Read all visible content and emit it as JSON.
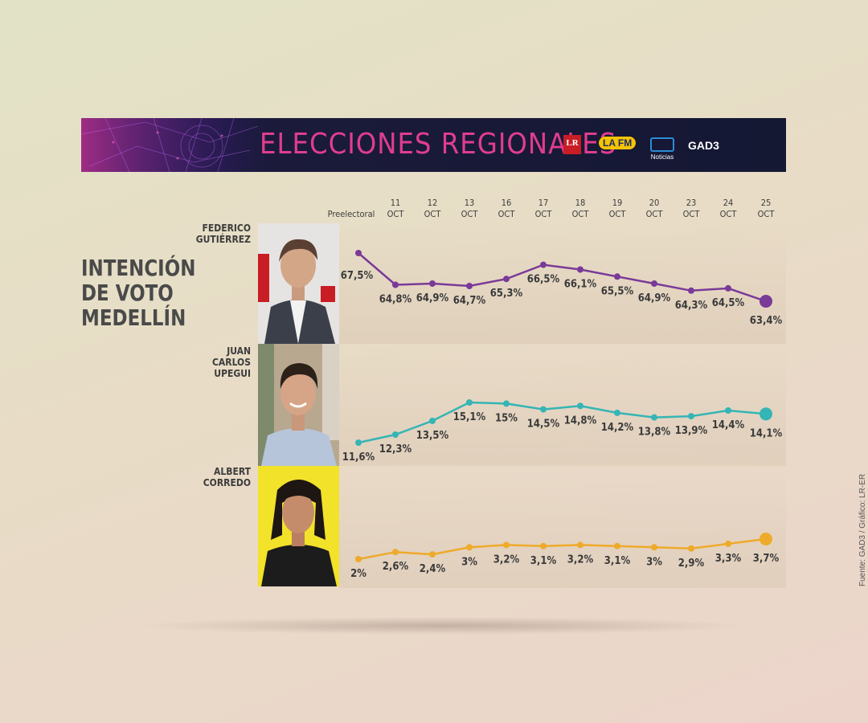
{
  "header": {
    "title": "ELECCIONES REGIONALES",
    "logos": [
      {
        "name": "La Republica",
        "text": "LR"
      },
      {
        "name": "La FM",
        "text": "LA FM"
      },
      {
        "name": "RCN Noticias",
        "text": "Noticias"
      },
      {
        "name": "GAD3",
        "text": "GAD3"
      }
    ]
  },
  "headline": [
    "INTENCIÓN",
    "DE VOTO",
    "MEDELLÍN"
  ],
  "source": "Fuente: GAD3 / Gráfico: LR-ER",
  "chart_data": {
    "type": "line",
    "x_ticks": [
      {
        "line1": "",
        "line2": "Preelectoral"
      },
      {
        "line1": "11",
        "line2": "OCT"
      },
      {
        "line1": "12",
        "line2": "OCT"
      },
      {
        "line1": "13",
        "line2": "OCT"
      },
      {
        "line1": "16",
        "line2": "OCT"
      },
      {
        "line1": "17",
        "line2": "OCT"
      },
      {
        "line1": "18",
        "line2": "OCT"
      },
      {
        "line1": "19",
        "line2": "OCT"
      },
      {
        "line1": "20",
        "line2": "OCT"
      },
      {
        "line1": "23",
        "line2": "OCT"
      },
      {
        "line1": "24",
        "line2": "OCT"
      },
      {
        "line1": "25",
        "line2": "OCT"
      }
    ],
    "series": [
      {
        "name": "FEDERICO GUTIÉRREZ",
        "name_lines": [
          "FEDERICO",
          "GUTIÉRREZ"
        ],
        "color": "#7a3a98",
        "values": [
          67.5,
          64.8,
          64.9,
          64.7,
          65.3,
          66.5,
          66.1,
          65.5,
          64.9,
          64.3,
          64.5,
          63.4
        ],
        "labels": [
          "67,5%",
          "64,8%",
          "64,9%",
          "64,7%",
          "65,3%",
          "66,5%",
          "66,1%",
          "65,5%",
          "64,9%",
          "64,3%",
          "64,5%",
          "63,4%"
        ],
        "photo": {
          "background": "#e8e8e8",
          "shirt": "#3b3f4a",
          "accent": "#c81d25"
        }
      },
      {
        "name": "JUAN CARLOS UPEGUI",
        "name_lines": [
          "JUAN",
          "CARLOS",
          "UPEGUI"
        ],
        "color": "#35b5b5",
        "values": [
          11.6,
          12.3,
          13.5,
          15.1,
          15,
          14.5,
          14.8,
          14.2,
          13.8,
          13.9,
          14.4,
          14.1
        ],
        "labels": [
          "11,6%",
          "12,3%",
          "13,5%",
          "15,1%",
          "15%",
          "14,5%",
          "14,8%",
          "14,2%",
          "13,8%",
          "13,9%",
          "14,4%",
          "14,1%"
        ],
        "photo": {
          "background": "#b9a88c",
          "shirt": "#b8c6db",
          "accent": "#6d7b64"
        }
      },
      {
        "name": "ALBERT CORREDO",
        "name_lines": [
          "ALBERT",
          "CORREDO"
        ],
        "color": "#eeaa2a",
        "values": [
          2,
          2.6,
          2.4,
          3,
          3.2,
          3.1,
          3.2,
          3.1,
          3,
          2.9,
          3.3,
          3.7
        ],
        "labels": [
          "2%",
          "2,6%",
          "2,4%",
          "3%",
          "3,2%",
          "3,1%",
          "3,2%",
          "3,1%",
          "3%",
          "2,9%",
          "3,3%",
          "3,7%"
        ],
        "photo": {
          "background": "#f2e22a",
          "shirt": "#1c1c1c",
          "accent": "#f2e22a"
        }
      }
    ]
  }
}
